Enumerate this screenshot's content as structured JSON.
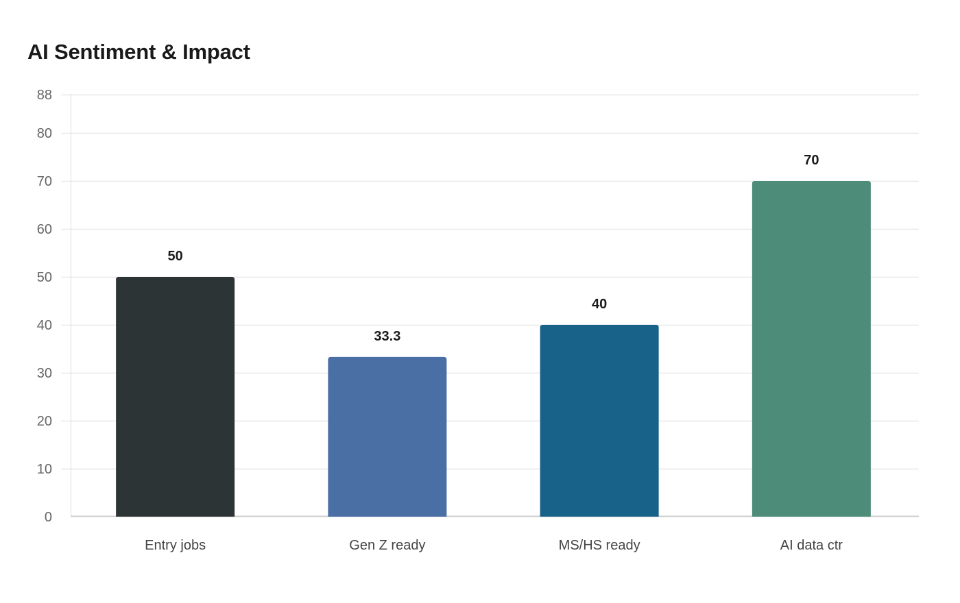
{
  "chart_data": {
    "type": "bar",
    "title": "AI Sentiment & Impact",
    "xlabel": "",
    "ylabel": "",
    "categories": [
      "Entry jobs",
      "Gen Z ready",
      "MS/HS ready",
      "AI data ctr"
    ],
    "values": [
      50,
      33.3,
      40,
      70
    ],
    "value_labels": [
      "50",
      "33.3",
      "40",
      "70"
    ],
    "colors": [
      "#2d3436",
      "#4a6fa5",
      "#186188",
      "#4e8c7a"
    ],
    "ylim": [
      0,
      88
    ],
    "yticks": [
      0,
      10,
      20,
      30,
      40,
      50,
      60,
      70,
      80,
      88
    ],
    "grid": true,
    "legend": "none"
  }
}
